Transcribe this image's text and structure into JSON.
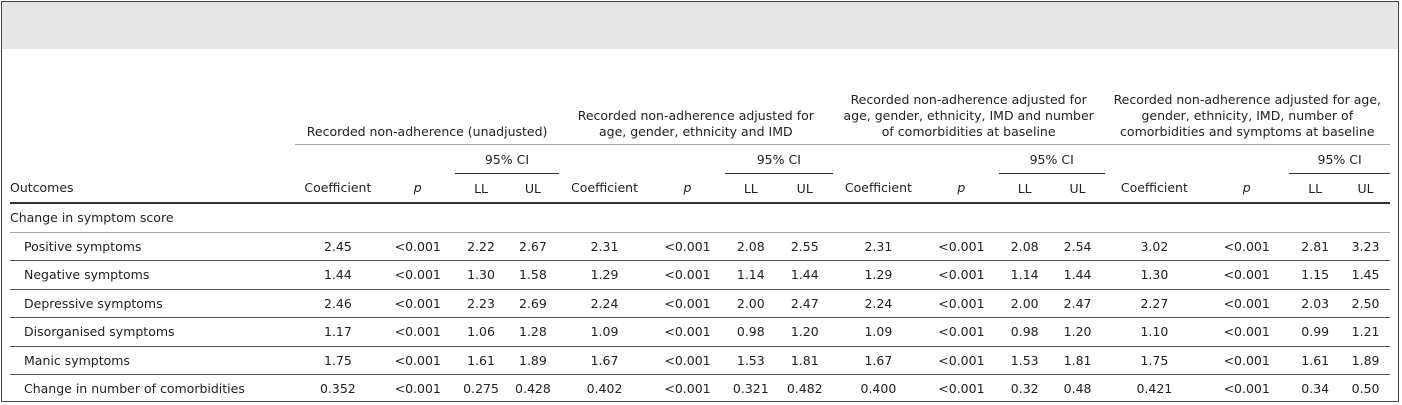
{
  "header": {
    "outcomes": "Outcomes",
    "groups": [
      "Recorded non-adherence (unadjusted)",
      "Recorded non-adherence adjusted for age, gender, ethnicity and IMD",
      "Recorded non-adherence adjusted for age, gender, ethnicity, IMD and number of comorbidities at baseline",
      "Recorded non-adherence adjusted for age, gender, ethnicity, IMD, number of comorbidities and symptoms at baseline"
    ],
    "ci": "95% CI",
    "coefficient": "Coefficient",
    "p": "p",
    "ll": "LL",
    "ul": "UL"
  },
  "section": "Change in symptom score",
  "rows": [
    {
      "label": "Positive symptoms",
      "values": [
        "2.45",
        "<0.001",
        "2.22",
        "2.67",
        "2.31",
        "<0.001",
        "2.08",
        "2.55",
        "2.31",
        "<0.001",
        "2.08",
        "2.54",
        "3.02",
        "<0.001",
        "2.81",
        "3.23"
      ]
    },
    {
      "label": "Negative symptoms",
      "values": [
        "1.44",
        "<0.001",
        "1.30",
        "1.58",
        "1.29",
        "<0.001",
        "1.14",
        "1.44",
        "1.29",
        "<0.001",
        "1.14",
        "1.44",
        "1.30",
        "<0.001",
        "1.15",
        "1.45"
      ]
    },
    {
      "label": "Depressive symptoms",
      "values": [
        "2.46",
        "<0.001",
        "2.23",
        "2.69",
        "2.24",
        "<0.001",
        "2.00",
        "2.47",
        "2.24",
        "<0.001",
        "2.00",
        "2.47",
        "2.27",
        "<0.001",
        "2.03",
        "2.50"
      ]
    },
    {
      "label": "Disorganised symptoms",
      "values": [
        "1.17",
        "<0.001",
        "1.06",
        "1.28",
        "1.09",
        "<0.001",
        "0.98",
        "1.20",
        "1.09",
        "<0.001",
        "0.98",
        "1.20",
        "1.10",
        "<0.001",
        "0.99",
        "1.21"
      ]
    },
    {
      "label": "Manic symptoms",
      "values": [
        "1.75",
        "<0.001",
        "1.61",
        "1.89",
        "1.67",
        "<0.001",
        "1.53",
        "1.81",
        "1.67",
        "<0.001",
        "1.53",
        "1.81",
        "1.75",
        "<0.001",
        "1.61",
        "1.89"
      ]
    },
    {
      "label": "Change in number of comorbidities",
      "values": [
        "0.352",
        "<0.001",
        "0.275",
        "0.428",
        "0.402",
        "<0.001",
        "0.321",
        "0.482",
        "0.400",
        "<0.001",
        "0.32",
        "0.48",
        "0.421",
        "<0.001",
        "0.34",
        "0.50"
      ]
    }
  ]
}
